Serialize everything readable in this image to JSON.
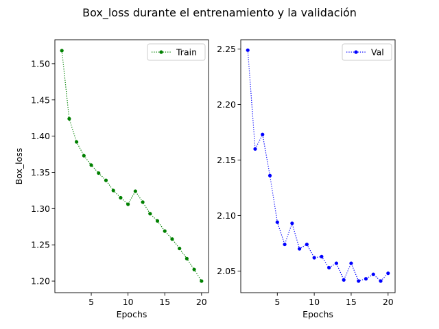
{
  "figure": {
    "suptitle": "Box_loss durante el entrenamiento y la validación"
  },
  "chart_data": [
    {
      "type": "line",
      "xlabel": "Epochs",
      "ylabel": "Box_loss",
      "xlim": [
        0.05,
        20.95
      ],
      "ylim": [
        1.184,
        1.533
      ],
      "xticks": [
        5,
        10,
        15,
        20
      ],
      "yticks": [
        1.2,
        1.25,
        1.3,
        1.35,
        1.4,
        1.45,
        1.5
      ],
      "ytick_decimals": 2,
      "grid": false,
      "legend_placement": "top-right",
      "series": [
        {
          "name": "Train",
          "color": "#008000",
          "line_style": "dotted",
          "marker": "circle",
          "x": [
            1,
            2,
            3,
            4,
            5,
            6,
            7,
            8,
            9,
            10,
            11,
            12,
            13,
            14,
            15,
            16,
            17,
            18,
            19,
            20
          ],
          "y": [
            1.518,
            1.424,
            1.392,
            1.373,
            1.36,
            1.349,
            1.339,
            1.325,
            1.315,
            1.306,
            1.324,
            1.309,
            1.293,
            1.283,
            1.269,
            1.258,
            1.245,
            1.231,
            1.216,
            1.2
          ]
        }
      ]
    },
    {
      "type": "line",
      "xlabel": "Epochs",
      "ylabel": "",
      "xlim": [
        0.05,
        20.95
      ],
      "ylim": [
        2.0305,
        2.2584
      ],
      "xticks": [
        5,
        10,
        15,
        20
      ],
      "yticks": [
        2.05,
        2.1,
        2.15,
        2.2,
        2.25
      ],
      "ytick_decimals": 2,
      "grid": false,
      "legend_placement": "top-right",
      "series": [
        {
          "name": "Val",
          "color": "#0000ff",
          "line_style": "dotted",
          "marker": "circle",
          "x": [
            1,
            2,
            3,
            4,
            5,
            6,
            7,
            8,
            9,
            10,
            11,
            12,
            13,
            14,
            15,
            16,
            17,
            18,
            19,
            20
          ],
          "y": [
            2.249,
            2.16,
            2.173,
            2.136,
            2.094,
            2.074,
            2.093,
            2.07,
            2.074,
            2.062,
            2.063,
            2.053,
            2.057,
            2.042,
            2.057,
            2.041,
            2.043,
            2.047,
            2.041,
            2.048
          ]
        }
      ]
    }
  ]
}
